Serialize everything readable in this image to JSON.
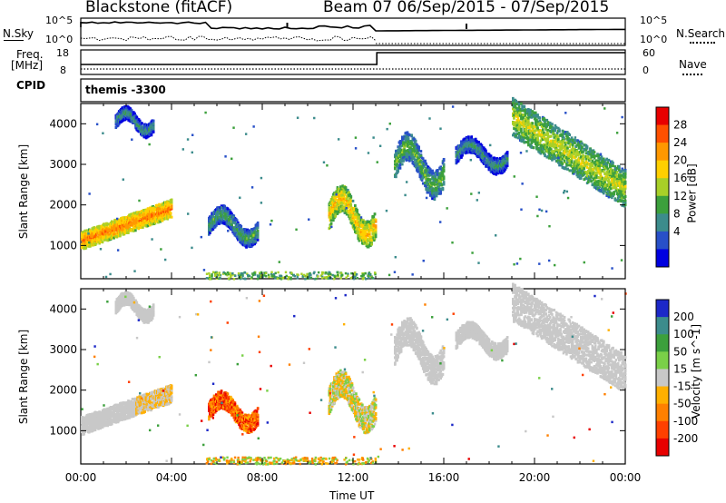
{
  "header": {
    "title_left": "Blackstone (fitACF)",
    "title_right": "Beam 07  06/Sep/2015 - 07/Sep/2015"
  },
  "summary_panels": {
    "nsky_label": "N.Sky",
    "nsearch_label": "N.Search",
    "nsky_ticks": [
      "10^5",
      "10^0"
    ],
    "freq_label_line1": "Freq.",
    "freq_label_line2": "[MHz]",
    "freq_ticks": [
      "18",
      "8"
    ],
    "nave_label": "Nave",
    "nave_ticks": [
      "60",
      "0"
    ],
    "cpid_label": "CPID",
    "cpid_value": "themis -3300"
  },
  "chart_data": [
    {
      "type": "heatmap",
      "name": "power",
      "ylabel": "Slant Range [km]",
      "xlabel": "Time UT",
      "y_ticks": [
        1000,
        2000,
        3000,
        4000
      ],
      "ylim": [
        180,
        4500
      ],
      "xlim_hours": [
        0,
        24
      ],
      "x_tick_labels": [
        "00:00",
        "04:00",
        "08:00",
        "12:00",
        "16:00",
        "20:00",
        "00:00"
      ],
      "colorbar": {
        "label": "Power [dB]",
        "ticks": [
          "28",
          "24",
          "20",
          "16",
          "12",
          "8",
          "4"
        ],
        "colors": [
          "#e80000",
          "#ff5000",
          "#ff9800",
          "#ffd000",
          "#a8d028",
          "#3ca03c",
          "#3c8c8c",
          "#2850c8",
          "#0000e0"
        ]
      },
      "features": [
        {
          "t0": 0.0,
          "t1": 4.0,
          "r0": 1150,
          "r1": 2150,
          "value": 26
        },
        {
          "t0": 1.5,
          "t1": 3.2,
          "r0": 3700,
          "r1": 4450,
          "value": 10
        },
        {
          "t0": 5.6,
          "t1": 7.8,
          "r0": 1000,
          "r1": 2000,
          "value": 12
        },
        {
          "t0": 10.9,
          "t1": 13.0,
          "r0": 1000,
          "r1": 2500,
          "value": 22
        },
        {
          "t0": 13.8,
          "t1": 16.0,
          "r0": 2200,
          "r1": 3800,
          "value": 14
        },
        {
          "t0": 16.5,
          "t1": 18.8,
          "r0": 2800,
          "r1": 3700,
          "value": 10
        },
        {
          "t0": 19.0,
          "t1": 24.0,
          "r0": 2100,
          "r1": 4200,
          "value": 18
        }
      ]
    },
    {
      "type": "heatmap",
      "name": "velocity",
      "ylabel": "Slant Range [km]",
      "xlabel": "Time UT",
      "y_ticks": [
        1000,
        2000,
        3000,
        4000
      ],
      "ylim": [
        180,
        4500
      ],
      "xlim_hours": [
        0,
        24
      ],
      "x_tick_labels": [
        "00:00",
        "04:00",
        "08:00",
        "12:00",
        "16:00",
        "20:00",
        "00:00"
      ],
      "colorbar": {
        "label": "Velocity [m s^-1]",
        "ticks": [
          "200",
          "100",
          "50",
          "15",
          "-15",
          "-50",
          "-100",
          "-200"
        ],
        "colors": [
          "#1c28c8",
          "#3c8c8c",
          "#3ca03c",
          "#7ad048",
          "#c8c8c8",
          "#ffb000",
          "#ff8000",
          "#ff4000",
          "#e80000"
        ]
      }
    }
  ],
  "xaxis_title": "Time UT"
}
